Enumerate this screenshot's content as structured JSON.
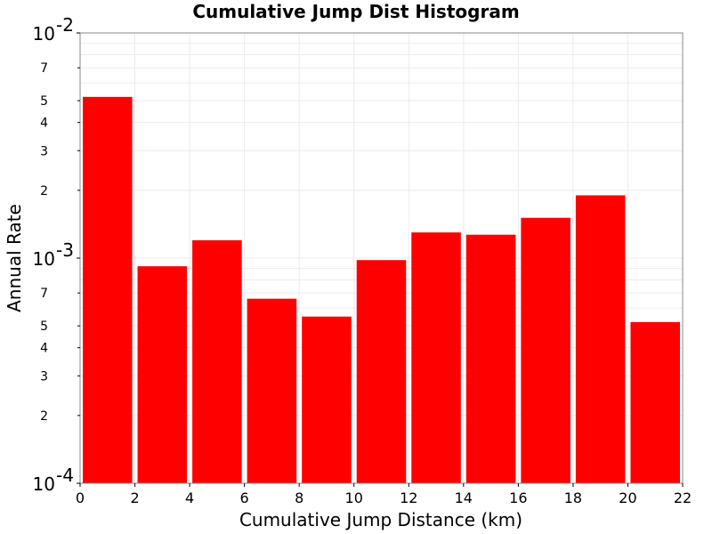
{
  "chart_data": {
    "type": "bar",
    "title": "Cumulative Jump Dist Histogram",
    "xlabel": "Cumulative Jump Distance (km)",
    "ylabel": "Annual Rate",
    "xlim": [
      0,
      22
    ],
    "ylim": [
      0.0001,
      0.01
    ],
    "yscale": "log",
    "grid": true,
    "bar_color": "#ff0000",
    "x_ticks": [
      "0",
      "2",
      "4",
      "6",
      "8",
      "10",
      "12",
      "14",
      "16",
      "18",
      "20",
      "22"
    ],
    "y_decade_labels": [
      {
        "base": "10",
        "exp": "-4",
        "value": 0.0001
      },
      {
        "base": "10",
        "exp": "-3",
        "value": 0.001
      },
      {
        "base": "10",
        "exp": "-2",
        "value": 0.01
      }
    ],
    "y_minor_labels": [
      "2",
      "3",
      "4",
      "5",
      "7"
    ],
    "bins": [
      {
        "x0": 0,
        "x1": 2,
        "value": 0.0052
      },
      {
        "x0": 2,
        "x1": 4,
        "value": 0.00092
      },
      {
        "x0": 4,
        "x1": 6,
        "value": 0.0012
      },
      {
        "x0": 6,
        "x1": 8,
        "value": 0.00066
      },
      {
        "x0": 8,
        "x1": 10,
        "value": 0.00055
      },
      {
        "x0": 10,
        "x1": 12,
        "value": 0.00098
      },
      {
        "x0": 12,
        "x1": 14,
        "value": 0.0013
      },
      {
        "x0": 14,
        "x1": 16,
        "value": 0.00127
      },
      {
        "x0": 16,
        "x1": 18,
        "value": 0.00151
      },
      {
        "x0": 18,
        "x1": 20,
        "value": 0.0019
      },
      {
        "x0": 20,
        "x1": 22,
        "value": 0.00052
      }
    ]
  }
}
